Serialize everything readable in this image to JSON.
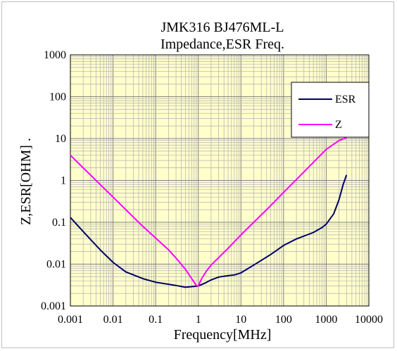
{
  "chart_data": {
    "type": "line",
    "title": "JMK316 BJ476ML-L",
    "subtitle": "Impedance,ESR Freq.",
    "xlabel": "Frequency[MHz]",
    "ylabel": "Z,ESR[OHM] .",
    "x_scale": "log",
    "y_scale": "log",
    "xlim": [
      0.001,
      10000
    ],
    "ylim": [
      0.001,
      1000
    ],
    "x_ticks": [
      "0.001",
      "0.01",
      "0.1",
      "1",
      "10",
      "100",
      "1000",
      "10000"
    ],
    "y_ticks": [
      "0.001",
      "0.01",
      "0.1",
      "1",
      "10",
      "100",
      "1000"
    ],
    "grid": true,
    "legend_position": "top-right",
    "plot_background": "#ffffcc",
    "series": [
      {
        "name": "ESR",
        "color": "#000066",
        "points": [
          [
            0.001,
            0.13
          ],
          [
            0.002,
            0.06
          ],
          [
            0.005,
            0.022
          ],
          [
            0.01,
            0.011
          ],
          [
            0.02,
            0.0065
          ],
          [
            0.05,
            0.0045
          ],
          [
            0.1,
            0.0037
          ],
          [
            0.2,
            0.0033
          ],
          [
            0.3,
            0.0031
          ],
          [
            0.5,
            0.0028
          ],
          [
            0.7,
            0.0029
          ],
          [
            1,
            0.003
          ],
          [
            1.5,
            0.0036
          ],
          [
            2,
            0.0042
          ],
          [
            3,
            0.0049
          ],
          [
            5,
            0.0053
          ],
          [
            7,
            0.0055
          ],
          [
            10,
            0.0062
          ],
          [
            20,
            0.0095
          ],
          [
            50,
            0.017
          ],
          [
            100,
            0.028
          ],
          [
            200,
            0.04
          ],
          [
            500,
            0.057
          ],
          [
            800,
            0.075
          ],
          [
            1000,
            0.09
          ],
          [
            1500,
            0.16
          ],
          [
            2000,
            0.35
          ],
          [
            2500,
            0.8
          ],
          [
            3000,
            1.35
          ]
        ]
      },
      {
        "name": "Z",
        "color": "#ff00ff",
        "points": [
          [
            0.001,
            4.0
          ],
          [
            0.002,
            2.0
          ],
          [
            0.005,
            0.8
          ],
          [
            0.01,
            0.4
          ],
          [
            0.02,
            0.2
          ],
          [
            0.05,
            0.08
          ],
          [
            0.1,
            0.042
          ],
          [
            0.2,
            0.022
          ],
          [
            0.3,
            0.014
          ],
          [
            0.5,
            0.0075
          ],
          [
            0.7,
            0.0045
          ],
          [
            0.9,
            0.0031
          ],
          [
            1,
            0.003
          ],
          [
            1.2,
            0.0045
          ],
          [
            1.5,
            0.0065
          ],
          [
            2,
            0.0095
          ],
          [
            5,
            0.024
          ],
          [
            10,
            0.05
          ],
          [
            20,
            0.1
          ],
          [
            50,
            0.25
          ],
          [
            100,
            0.52
          ],
          [
            200,
            1.05
          ],
          [
            500,
            2.7
          ],
          [
            1000,
            5.5
          ],
          [
            2000,
            9.0
          ],
          [
            3000,
            10.5
          ]
        ]
      }
    ]
  }
}
